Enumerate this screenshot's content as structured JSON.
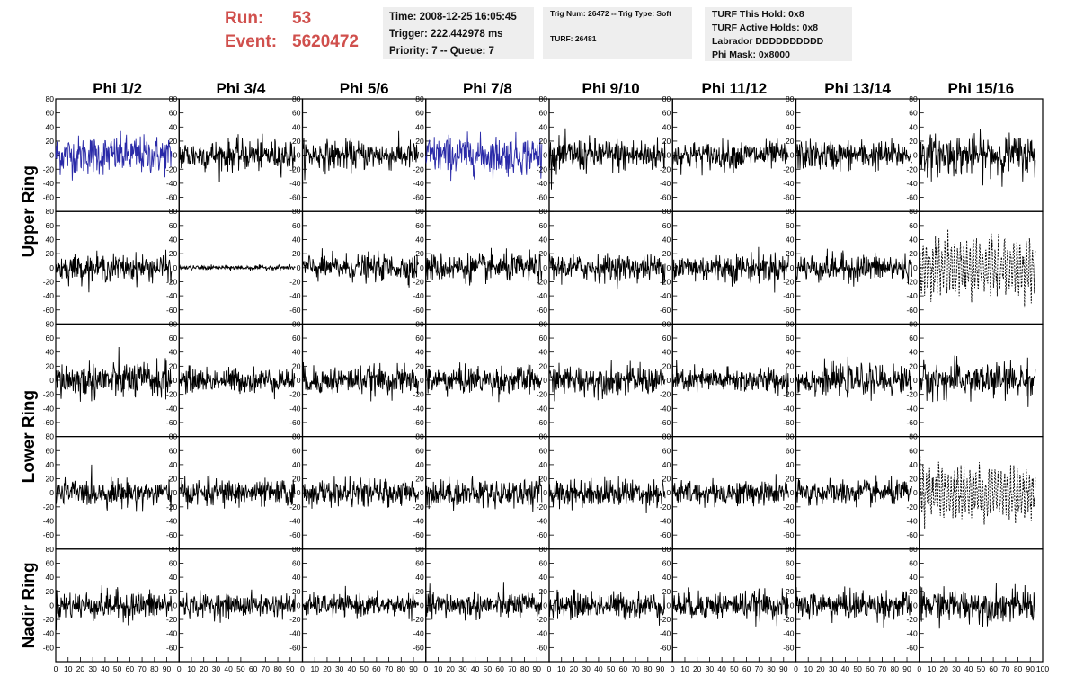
{
  "run": {
    "run_label": "Run:",
    "run_value": "53",
    "event_label": "Event:",
    "event_value": "5620472"
  },
  "info_time": {
    "time": "Time: 2008-12-25 16:05:45",
    "trigger": "Trigger: 222.442978 ms",
    "priority": "Priority: 7 -- Queue: 7"
  },
  "info_trig": {
    "trig": "Trig Num: 26472 -- Trig Type: Soft",
    "turf": "TURF: 26481"
  },
  "info_turf": {
    "hold": "TURF This Hold: 0x8",
    "active": "TURF Active Holds: 0x8",
    "labrador": "Labrador DDDDDDDDDD",
    "mask": "Phi Mask: 0x8000"
  },
  "colors": {
    "run_text": "#d0504d",
    "info_bg": "#eeeeee",
    "trace": "#000000",
    "highlight_trace": "#2a2aa8"
  },
  "chart_data": {
    "type": "line",
    "columns": [
      "Phi 1/2",
      "Phi 3/4",
      "Phi 5/6",
      "Phi 7/8",
      "Phi 9/10",
      "Phi 11/12",
      "Phi 13/14",
      "Phi 15/16"
    ],
    "row_groups": [
      "Upper Ring",
      "Lower Ring",
      "Nadir Ring"
    ],
    "rows_per_group": [
      2,
      2,
      1
    ],
    "xlim": [
      0,
      100
    ],
    "ylim": [
      -80,
      80
    ],
    "x_ticks": [
      0,
      10,
      20,
      30,
      40,
      50,
      60,
      70,
      80,
      90,
      100
    ],
    "y_ticks": [
      -60,
      -40,
      -20,
      0,
      20,
      40,
      60,
      80
    ],
    "samples": 260,
    "trace_x_range": [
      0,
      94
    ],
    "panels": [
      [
        {
          "amp": 25,
          "color": "blue"
        },
        {
          "amp": 20
        },
        {
          "amp": 19
        },
        {
          "amp": 25,
          "color": "blue"
        },
        {
          "amp": 22
        },
        {
          "amp": 18
        },
        {
          "amp": 19
        },
        {
          "amp": 26
        }
      ],
      [
        {
          "amp": 17
        },
        {
          "amp": 3
        },
        {
          "amp": 17
        },
        {
          "amp": 18
        },
        {
          "amp": 17
        },
        {
          "amp": 19
        },
        {
          "amp": 18
        },
        {
          "amp": 30,
          "style": "dashed"
        }
      ],
      [
        {
          "amp": 24
        },
        {
          "amp": 16
        },
        {
          "amp": 18
        },
        {
          "amp": 18
        },
        {
          "amp": 19
        },
        {
          "amp": 16
        },
        {
          "amp": 19
        },
        {
          "amp": 23
        }
      ],
      [
        {
          "amp": 17
        },
        {
          "amp": 17
        },
        {
          "amp": 17
        },
        {
          "amp": 18
        },
        {
          "amp": 18
        },
        {
          "amp": 16
        },
        {
          "amp": 16
        },
        {
          "amp": 28,
          "style": "dashed"
        }
      ],
      [
        {
          "amp": 19
        },
        {
          "amp": 15
        },
        {
          "amp": 14
        },
        {
          "amp": 17
        },
        {
          "amp": 17
        },
        {
          "amp": 18
        },
        {
          "amp": 19
        },
        {
          "amp": 21
        }
      ]
    ]
  }
}
